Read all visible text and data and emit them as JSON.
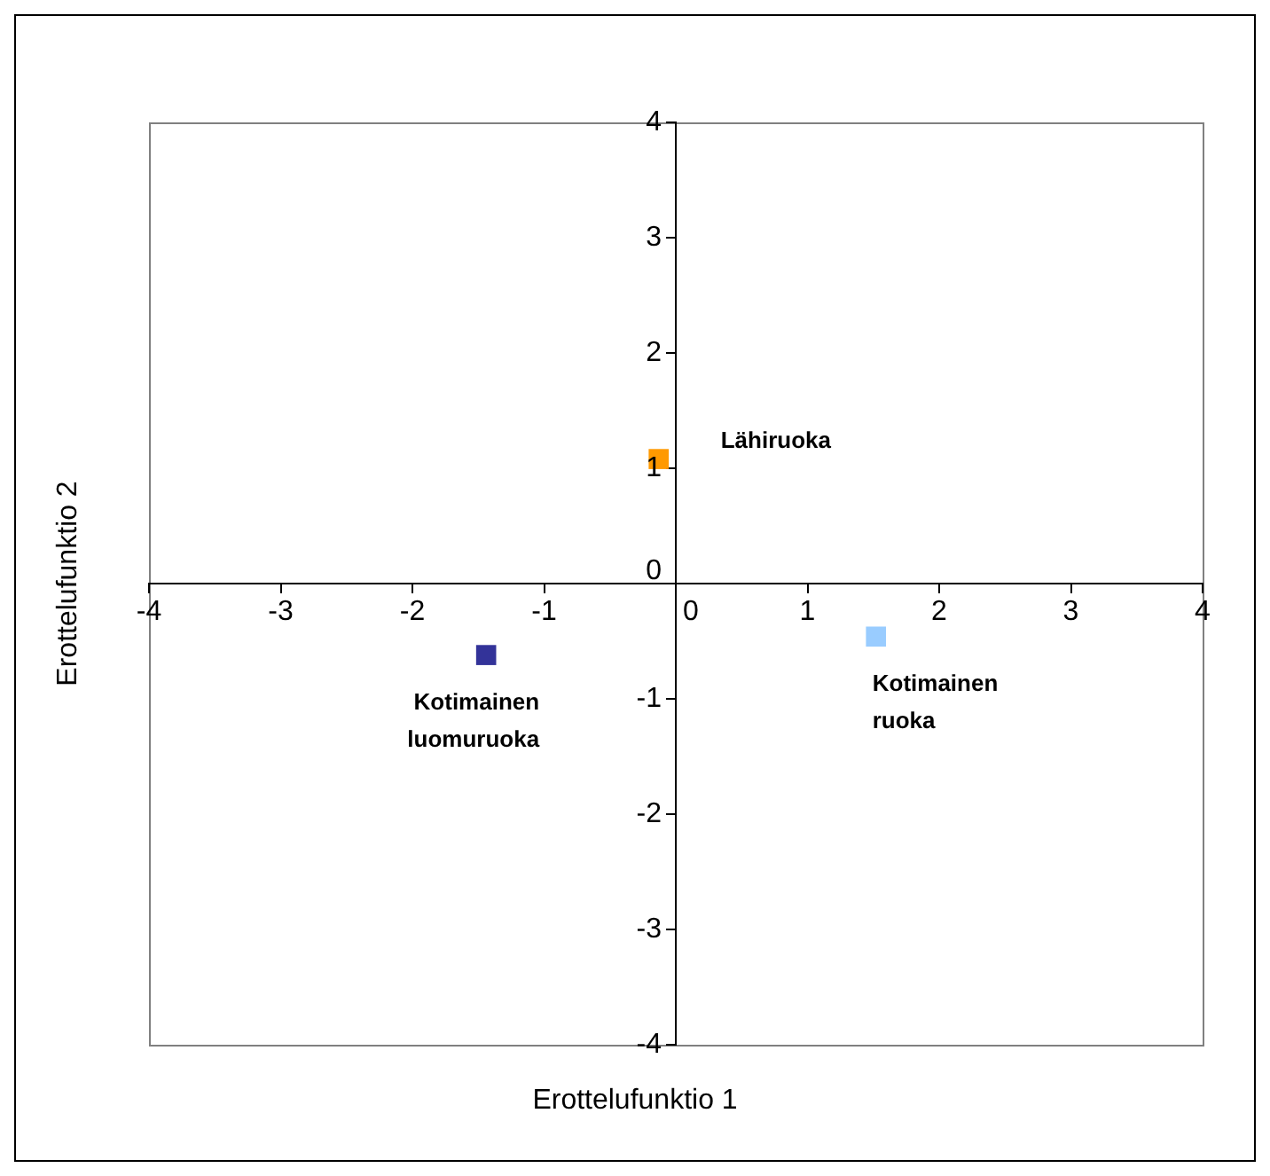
{
  "chart_data": {
    "type": "scatter",
    "xlabel": "Erottelufunktio 1",
    "ylabel": "Erottelufunktio 2",
    "xlim": [
      -4,
      4
    ],
    "ylim": [
      -4,
      4
    ],
    "xticks": [
      -4,
      -3,
      -2,
      -1,
      0,
      1,
      2,
      3,
      4
    ],
    "yticks": [
      -4,
      -3,
      -2,
      -1,
      0,
      1,
      2,
      3,
      4
    ],
    "grid": false,
    "legend": false,
    "marker": "square",
    "series": [
      {
        "name": "Lähiruoka",
        "color": "#ff9900",
        "x": [
          -0.13
        ],
        "values": [
          1.08
        ]
      },
      {
        "name": "Kotimainen luomuruoka",
        "color": "#333399",
        "x": [
          -1.44
        ],
        "values": [
          -0.62
        ]
      },
      {
        "name": "Kotimainen ruoka",
        "color": "#99ccff",
        "x": [
          1.52
        ],
        "values": [
          -0.46
        ]
      }
    ]
  }
}
